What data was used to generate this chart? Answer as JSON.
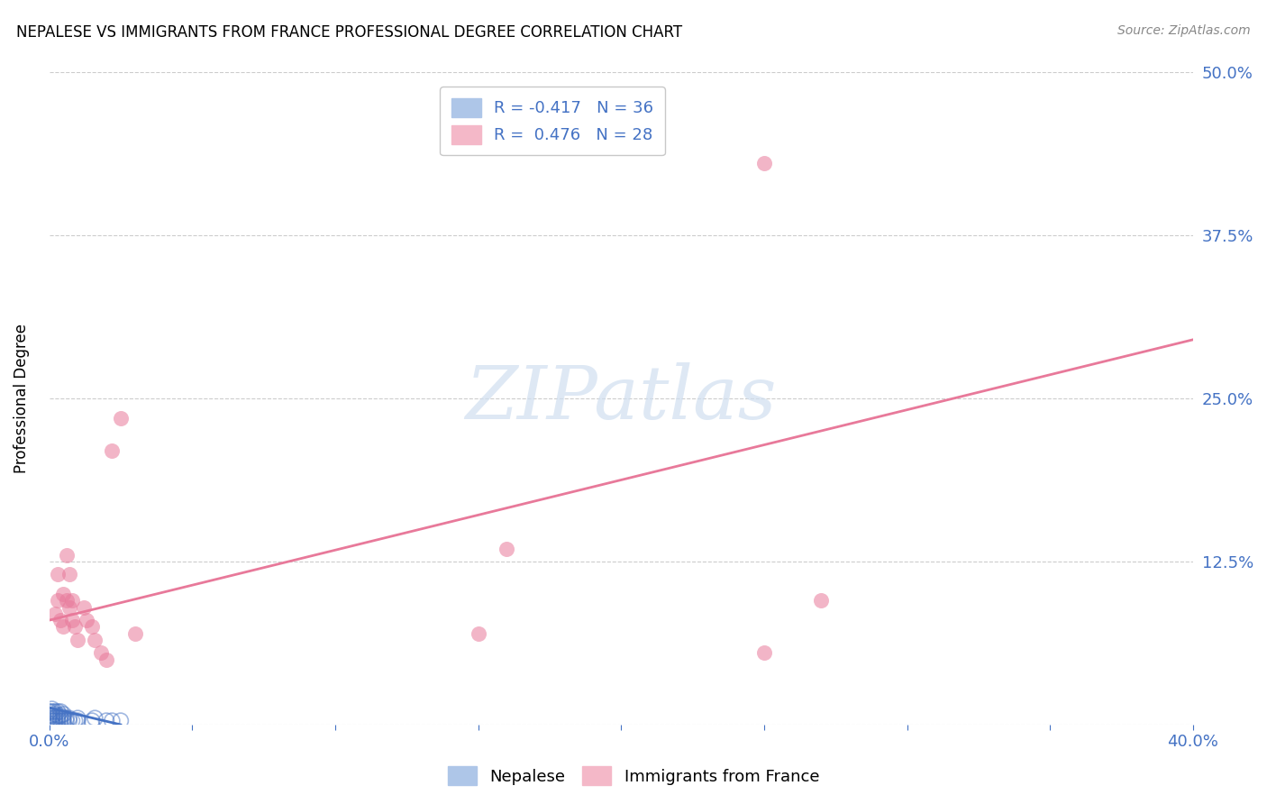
{
  "title": "NEPALESE VS IMMIGRANTS FROM FRANCE PROFESSIONAL DEGREE CORRELATION CHART",
  "source": "Source: ZipAtlas.com",
  "ylabel": "Professional Degree",
  "xlim": [
    0.0,
    0.4
  ],
  "ylim": [
    0.0,
    0.5
  ],
  "ytick_values": [
    0.0,
    0.125,
    0.25,
    0.375,
    0.5
  ],
  "ytick_labels": [
    "",
    "12.5%",
    "25.0%",
    "37.5%",
    "50.0%"
  ],
  "xtick_values": [
    0.0,
    0.05,
    0.1,
    0.15,
    0.2,
    0.25,
    0.3,
    0.35,
    0.4
  ],
  "nepalese_color": "#4472c4",
  "france_color": "#e8799a",
  "legend_patch_blue": "#aec6e8",
  "legend_patch_pink": "#f4b8c8",
  "watermark_color": "#d0dff0",
  "watermark_text": "ZIPatlas",
  "background_color": "#ffffff",
  "grid_color": "#cccccc",
  "tick_color": "#4472c4",
  "nepalese_R": -0.417,
  "nepalese_N": 36,
  "france_R": 0.476,
  "france_N": 28,
  "france_line_x0": 0.0,
  "france_line_y0": 0.08,
  "france_line_x1": 0.4,
  "france_line_y1": 0.295,
  "nep_line_x0": 0.0,
  "nep_line_y0": 0.013,
  "nep_line_x1": 0.025,
  "nep_line_y1": 0.0,
  "france_x": [
    0.002,
    0.003,
    0.003,
    0.004,
    0.005,
    0.005,
    0.006,
    0.006,
    0.007,
    0.007,
    0.008,
    0.008,
    0.009,
    0.01,
    0.012,
    0.013,
    0.015,
    0.016,
    0.018,
    0.02,
    0.022,
    0.025,
    0.03,
    0.15,
    0.16,
    0.25,
    0.27,
    0.25
  ],
  "france_y": [
    0.085,
    0.095,
    0.115,
    0.08,
    0.1,
    0.075,
    0.095,
    0.13,
    0.09,
    0.115,
    0.08,
    0.095,
    0.075,
    0.065,
    0.09,
    0.08,
    0.075,
    0.065,
    0.055,
    0.05,
    0.21,
    0.235,
    0.07,
    0.07,
    0.135,
    0.43,
    0.095,
    0.055
  ],
  "nep_x": [
    0.0,
    0.0,
    0.0,
    0.001,
    0.001,
    0.001,
    0.001,
    0.001,
    0.002,
    0.002,
    0.002,
    0.002,
    0.003,
    0.003,
    0.003,
    0.003,
    0.004,
    0.004,
    0.004,
    0.004,
    0.005,
    0.005,
    0.005,
    0.006,
    0.006,
    0.007,
    0.007,
    0.008,
    0.009,
    0.01,
    0.01,
    0.015,
    0.016,
    0.02,
    0.022,
    0.025
  ],
  "nep_y": [
    0.005,
    0.007,
    0.01,
    0.003,
    0.005,
    0.007,
    0.01,
    0.012,
    0.003,
    0.005,
    0.008,
    0.01,
    0.003,
    0.005,
    0.007,
    0.01,
    0.003,
    0.005,
    0.007,
    0.01,
    0.003,
    0.005,
    0.008,
    0.003,
    0.005,
    0.003,
    0.005,
    0.003,
    0.003,
    0.003,
    0.005,
    0.003,
    0.005,
    0.003,
    0.003,
    0.003
  ]
}
